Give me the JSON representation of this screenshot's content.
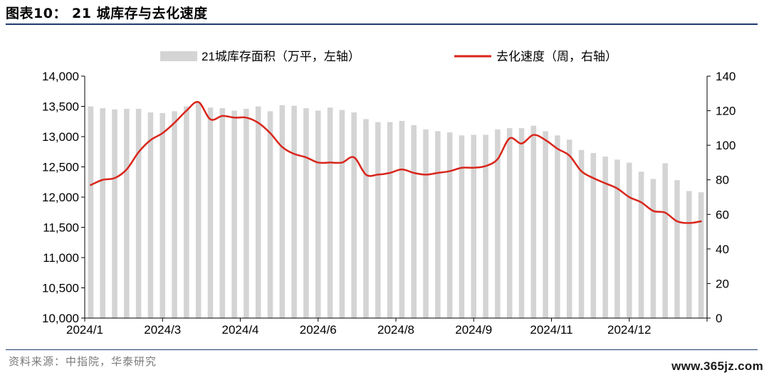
{
  "header": {
    "title": "图表10： 21 城库存与去化速度"
  },
  "footer": {
    "source": "资料来源：中指院，华泰研究",
    "watermark": "www.365jz.com"
  },
  "colors": {
    "bar": "#d4d4d4",
    "line": "#d9261c",
    "axis": "#000000",
    "rule": "#1f3c6e"
  },
  "chart_data": {
    "type": "bar+line",
    "x_tick_labels": [
      "2024/1",
      "2024/3",
      "2024/4",
      "2024/6",
      "2024/8",
      "2024/9",
      "2024/11",
      "2024/12"
    ],
    "y_left": {
      "label": "21城库存面积（万平，左轴）",
      "ticks": [
        "10,000",
        "10,500",
        "11,000",
        "11,500",
        "12,000",
        "12,500",
        "13,000",
        "13,500",
        "14,000"
      ],
      "ylim": [
        10000,
        14000
      ]
    },
    "y_right": {
      "label": "去化速度（周，右轴）",
      "ticks": [
        "0",
        "20",
        "40",
        "60",
        "80",
        "100",
        "120",
        "140"
      ],
      "ylim": [
        0,
        140
      ]
    },
    "legend": {
      "position": "top",
      "items": [
        "21城库存面积（万平，左轴）",
        "去化速度（周，右轴）"
      ]
    },
    "grid": false,
    "series": [
      {
        "name": "21城库存面积（万平，左轴）",
        "kind": "bar",
        "axis": "left",
        "values": [
          13500,
          13470,
          13450,
          13460,
          13460,
          13400,
          13390,
          13420,
          13500,
          13570,
          13480,
          13470,
          13430,
          13460,
          13500,
          13420,
          13520,
          13510,
          13470,
          13430,
          13480,
          13440,
          13400,
          13290,
          13240,
          13240,
          13260,
          13190,
          13120,
          13090,
          13070,
          13020,
          13030,
          13030,
          13120,
          13140,
          13140,
          13180,
          13090,
          13020,
          12950,
          12780,
          12730,
          12670,
          12620,
          12570,
          12420,
          12300,
          12560,
          12280,
          12100,
          12080
        ]
      },
      {
        "name": "去化速度（周，右轴）",
        "kind": "line",
        "axis": "right",
        "values": [
          77,
          80,
          81,
          86,
          96,
          103,
          107,
          113,
          120,
          125,
          115,
          117,
          116,
          116,
          113,
          107,
          99,
          95,
          93,
          90,
          90,
          90,
          93,
          83,
          83,
          84,
          86,
          84,
          83,
          84,
          85,
          87,
          87,
          88,
          92,
          104,
          101,
          106,
          103,
          98,
          94,
          85,
          81,
          78,
          75,
          70,
          67,
          62,
          61,
          56,
          55,
          56
        ]
      }
    ]
  }
}
